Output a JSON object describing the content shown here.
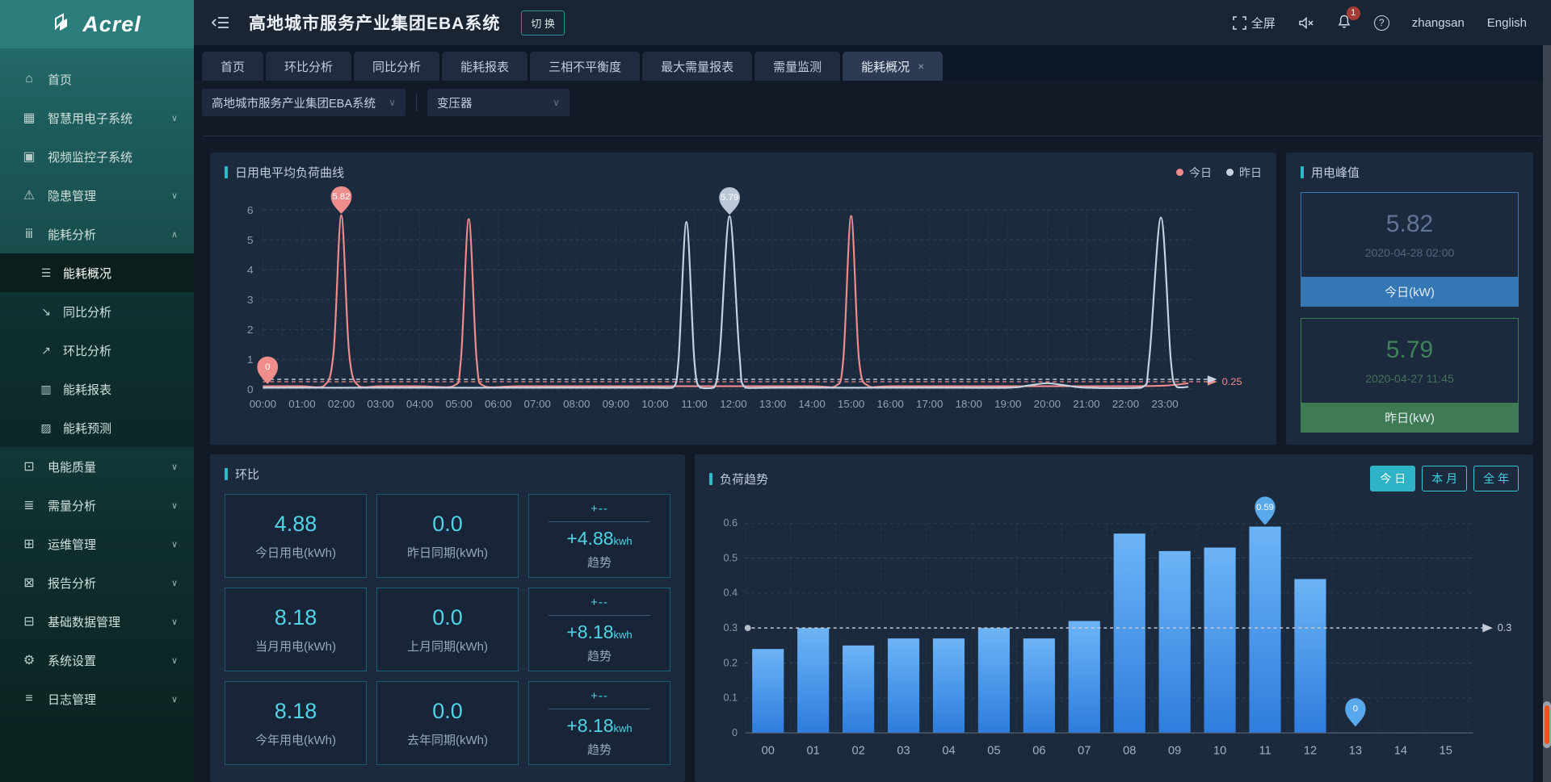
{
  "brand": {
    "name": "Acrel"
  },
  "header": {
    "title": "高地城市服务产业集团EBA系统",
    "switch_label": "切 换",
    "fullscreen_label": "全屏",
    "notification_count": "1",
    "username": "zhangsan",
    "language_label": "English"
  },
  "glyphs": {
    "chevron_down": "∨",
    "chevron_up": "∧",
    "close": "×",
    "select_arrow": "∨",
    "question_mark": "?"
  },
  "tabs": [
    {
      "label": "首页"
    },
    {
      "label": "环比分析"
    },
    {
      "label": "同比分析"
    },
    {
      "label": "能耗报表"
    },
    {
      "label": "三相不平衡度"
    },
    {
      "label": "最大需量报表"
    },
    {
      "label": "需量监测"
    },
    {
      "label": "能耗概况",
      "active": true
    }
  ],
  "filters": {
    "system": "高地城市服务产业集团EBA系统",
    "device": "变压器"
  },
  "sidebar": {
    "items": [
      {
        "label": "首页",
        "icon": "home-icon",
        "glyph": "⌂"
      },
      {
        "label": "智慧用电子系统",
        "icon": "smart-power-icon",
        "glyph": "▦"
      },
      {
        "label": "视频监控子系统",
        "icon": "video-monitor-icon",
        "glyph": "▣"
      },
      {
        "label": "隐患管理",
        "icon": "hazard-icon",
        "glyph": "⚠"
      },
      {
        "label": "能耗分析",
        "icon": "energy-analysis-icon",
        "glyph": "ⅲ",
        "children": [
          {
            "label": "能耗概况",
            "icon": "overview-list-icon",
            "glyph": "☰",
            "active": true
          },
          {
            "label": "同比分析",
            "icon": "yoy-trend-icon",
            "glyph": "↘"
          },
          {
            "label": "环比分析",
            "icon": "mom-trend-icon",
            "glyph": "↗"
          },
          {
            "label": "能耗报表",
            "icon": "energy-report-icon",
            "glyph": "▥"
          },
          {
            "label": "能耗预测",
            "icon": "energy-forecast-icon",
            "glyph": "▨"
          }
        ]
      },
      {
        "label": "电能质量",
        "icon": "power-quality-icon",
        "glyph": "⊡"
      },
      {
        "label": "需量分析",
        "icon": "demand-analysis-icon",
        "glyph": "≣"
      },
      {
        "label": "运维管理",
        "icon": "ops-management-icon",
        "glyph": "⊞"
      },
      {
        "label": "报告分析",
        "icon": "report-analysis-icon",
        "glyph": "⊠"
      },
      {
        "label": "基础数据管理",
        "icon": "base-data-icon",
        "glyph": "⊟"
      },
      {
        "label": "系统设置",
        "icon": "settings-gear-icon",
        "glyph": "⚙"
      },
      {
        "label": "日志管理",
        "icon": "log-management-icon",
        "glyph": "≡"
      }
    ]
  },
  "panels": {
    "load_curve": {
      "title": "日用电平均负荷曲线",
      "legend": [
        {
          "label": "今日",
          "color": "#ef8c8c"
        },
        {
          "label": "昨日",
          "color": "#c6d3e0"
        }
      ]
    },
    "peak": {
      "title": "用电峰值",
      "cards": [
        {
          "value": "5.82",
          "time": "2020-04-28 02:00",
          "label": "今日(kW)"
        },
        {
          "value": "5.79",
          "time": "2020-04-27 11:45",
          "label": "昨日(kW)"
        }
      ]
    },
    "ring": {
      "title": "环比",
      "cards": [
        {
          "value": "4.88",
          "label": "今日用电(kWh)"
        },
        {
          "value": "0.0",
          "label": "昨日同期(kWh)"
        },
        {
          "top": "+--",
          "delta": "+4.88",
          "unit": "kwh",
          "label": "趋势"
        },
        {
          "value": "8.18",
          "label": "当月用电(kWh)"
        },
        {
          "value": "0.0",
          "label": "上月同期(kWh)"
        },
        {
          "top": "+--",
          "delta": "+8.18",
          "unit": "kwh",
          "label": "趋势"
        },
        {
          "value": "8.18",
          "label": "今年用电(kWh)"
        },
        {
          "value": "0.0",
          "label": "去年同期(kWh)"
        },
        {
          "top": "+--",
          "delta": "+8.18",
          "unit": "kwh",
          "label": "趋势"
        }
      ]
    },
    "trend": {
      "title": "负荷趋势",
      "buttons": [
        {
          "label": "今 日",
          "active": true
        },
        {
          "label": "本 月"
        },
        {
          "label": "全 年"
        }
      ]
    }
  },
  "chart_data": [
    {
      "type": "line",
      "title": "日用电平均负荷曲线",
      "x_labels": [
        "00:00",
        "01:00",
        "02:00",
        "03:00",
        "04:00",
        "05:00",
        "06:00",
        "07:00",
        "08:00",
        "09:00",
        "10:00",
        "11:00",
        "12:00",
        "13:00",
        "14:00",
        "15:00",
        "16:00",
        "17:00",
        "18:00",
        "19:00",
        "20:00",
        "21:00",
        "22:00",
        "23:00"
      ],
      "ylim": [
        0,
        6
      ],
      "yticks": [
        0,
        1,
        2,
        3,
        4,
        5,
        6
      ],
      "legend_position": "top-right",
      "grid": true,
      "series": [
        {
          "name": "今日",
          "color": "#ef8c8c",
          "points": [
            [
              0,
              0.1
            ],
            [
              0.5,
              0.1
            ],
            [
              1,
              0.1
            ],
            [
              1.55,
              0.1
            ],
            [
              1.8,
              1.2
            ],
            [
              2,
              5.82
            ],
            [
              2.2,
              1.2
            ],
            [
              2.45,
              0.1
            ],
            [
              3,
              0.1
            ],
            [
              4,
              0.1
            ],
            [
              4.85,
              0.1
            ],
            [
              5.05,
              1.0
            ],
            [
              5.25,
              5.7
            ],
            [
              5.45,
              1.0
            ],
            [
              5.65,
              0.1
            ],
            [
              6.5,
              0.1
            ],
            [
              8,
              0.1
            ],
            [
              10,
              0.1
            ],
            [
              12,
              0.1
            ],
            [
              14,
              0.1
            ],
            [
              14.6,
              0.1
            ],
            [
              14.8,
              1.0
            ],
            [
              15,
              5.8
            ],
            [
              15.2,
              1.0
            ],
            [
              15.45,
              0.1
            ],
            [
              16,
              0.1
            ],
            [
              18,
              0.1
            ],
            [
              20,
              0.1
            ],
            [
              22,
              0.1
            ],
            [
              23,
              0.12
            ],
            [
              23.6,
              0.2
            ]
          ]
        },
        {
          "name": "昨日",
          "color": "#c6d3e0",
          "points": [
            [
              0,
              0.05
            ],
            [
              2,
              0.05
            ],
            [
              4,
              0.05
            ],
            [
              6,
              0.05
            ],
            [
              8,
              0.05
            ],
            [
              10,
              0.05
            ],
            [
              10.45,
              0.05
            ],
            [
              10.6,
              1.0
            ],
            [
              10.8,
              5.6
            ],
            [
              11,
              1.0
            ],
            [
              11.15,
              0.05
            ],
            [
              11.5,
              0.05
            ],
            [
              11.65,
              1.2
            ],
            [
              11.9,
              5.79
            ],
            [
              12.15,
              1.2
            ],
            [
              12.3,
              0.05
            ],
            [
              13,
              0.05
            ],
            [
              15,
              0.05
            ],
            [
              17,
              0.05
            ],
            [
              19,
              0.05
            ],
            [
              19.5,
              0.12
            ],
            [
              20,
              0.2
            ],
            [
              20.5,
              0.12
            ],
            [
              21,
              0.05
            ],
            [
              22.4,
              0.05
            ],
            [
              22.6,
              1.0
            ],
            [
              22.9,
              5.75
            ],
            [
              23.15,
              1.0
            ],
            [
              23.3,
              0.08
            ],
            [
              23.6,
              0.08
            ]
          ]
        }
      ],
      "avg_lines": [
        {
          "value": 0.25,
          "color": "#ef8c8c",
          "label": "0.25"
        },
        {
          "value": 0.33,
          "color": "#c6d3e0",
          "label": ""
        }
      ],
      "markers": [
        {
          "x": 2,
          "y": 5.82,
          "label": "5.82",
          "color": "#ef8c8c"
        },
        {
          "x": 0.12,
          "y": 0.12,
          "label": "0",
          "color": "#ef8c8c"
        },
        {
          "x": 11.9,
          "y": 5.79,
          "label": "5.79",
          "color": "#b9c7d6"
        }
      ]
    },
    {
      "type": "bar",
      "title": "负荷趋势",
      "categories": [
        "00",
        "01",
        "02",
        "03",
        "04",
        "05",
        "06",
        "07",
        "08",
        "09",
        "10",
        "11",
        "12",
        "13",
        "14",
        "15"
      ],
      "values": [
        0.24,
        0.3,
        0.25,
        0.27,
        0.27,
        0.3,
        0.27,
        0.32,
        0.57,
        0.52,
        0.53,
        0.59,
        0.44,
        0,
        0,
        0
      ],
      "ylim": [
        0,
        0.6
      ],
      "yticks": [
        0,
        0.1,
        0.2,
        0.3,
        0.4,
        0.5,
        0.6
      ],
      "grid": true,
      "bar_colors": [
        "#6db4f6",
        "#2e7ddd"
      ],
      "balloon_color": "#58a8ec",
      "avg_line": {
        "value": 0.3,
        "label": "0.3",
        "color": "#c3ccd6"
      },
      "markers": [
        {
          "index": 11,
          "value": 0.59,
          "label": "0.59"
        },
        {
          "index": 13,
          "value": 0,
          "label": "0"
        }
      ]
    }
  ]
}
